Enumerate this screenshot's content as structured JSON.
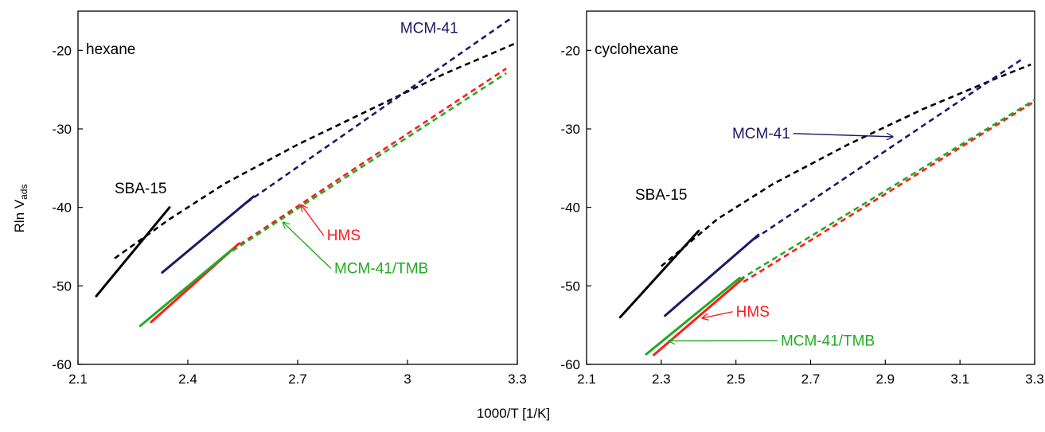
{
  "figure": {
    "ylabel_main": "Rln V",
    "ylabel_sub": "ads",
    "xlabel": "1000/T [1/K]"
  },
  "colors": {
    "SBA-15": "#000000",
    "MCM-41": "#1a1a66",
    "HMS": "#ff1a1a",
    "MCM-41/TMB": "#22aa22"
  },
  "chart_data": [
    {
      "type": "line",
      "panel_label": "hexane",
      "xlim": [
        2.1,
        3.3
      ],
      "ylim": [
        -60,
        -15
      ],
      "xticks": [
        "2.1",
        "2.4",
        "2.7",
        "3",
        "3.3"
      ],
      "yticks": [
        "-20",
        "-30",
        "-40",
        "-50",
        "-60"
      ],
      "ytick_values": [
        -20,
        -30,
        -40,
        -50,
        -60
      ],
      "xtick_values": [
        2.1,
        2.4,
        2.7,
        3.0,
        3.3
      ],
      "grid": false,
      "series": [
        {
          "name": "SBA-15",
          "style": "solid",
          "points": [
            [
              2.15,
              -51.3
            ],
            [
              2.35,
              -40.0
            ]
          ]
        },
        {
          "name": "SBA-15",
          "style": "dashed",
          "points": [
            [
              2.2,
              -46.5
            ],
            [
              2.35,
              -41.5
            ],
            [
              2.5,
              -37.0
            ],
            [
              2.7,
              -32.0
            ],
            [
              2.9,
              -27.5
            ],
            [
              3.1,
              -23.0
            ],
            [
              3.3,
              -19.0
            ]
          ]
        },
        {
          "name": "MCM-41",
          "style": "solid",
          "points": [
            [
              2.33,
              -48.3
            ],
            [
              2.58,
              -38.6
            ]
          ]
        },
        {
          "name": "MCM-41",
          "style": "dashed",
          "points": [
            [
              2.56,
              -39.4
            ],
            [
              3.28,
              -16.0
            ]
          ]
        },
        {
          "name": "HMS",
          "style": "solid",
          "points": [
            [
              2.3,
              -54.6
            ],
            [
              2.54,
              -44.6
            ]
          ]
        },
        {
          "name": "HMS",
          "style": "dashed",
          "points": [
            [
              2.52,
              -45.4
            ],
            [
              3.27,
              -22.3
            ]
          ]
        },
        {
          "name": "MCM-41/TMB",
          "style": "solid",
          "points": [
            [
              2.27,
              -55.1
            ],
            [
              2.52,
              -45.4
            ]
          ]
        },
        {
          "name": "MCM-41/TMB",
          "style": "dashed",
          "points": [
            [
              2.5,
              -46.2
            ],
            [
              3.27,
              -22.9
            ]
          ]
        }
      ],
      "annotations": [
        {
          "text": "SBA-15",
          "color": "SBA-15",
          "at": [
            2.2,
            -38.2
          ],
          "arrow": false
        },
        {
          "text": "MCM-41",
          "color": "MCM-41",
          "at": [
            2.98,
            -17.8
          ],
          "arrow": false
        },
        {
          "text": "HMS",
          "color": "HMS",
          "at": [
            2.78,
            -44.2
          ],
          "arrow": true,
          "arrow_to": [
            2.71,
            -39.7
          ]
        },
        {
          "text": "MCM-41/TMB",
          "color": "MCM-41/TMB",
          "at": [
            2.8,
            -48.4
          ],
          "arrow": true,
          "arrow_to": [
            2.66,
            -41.9
          ]
        }
      ]
    },
    {
      "type": "line",
      "panel_label": "cyclohexane",
      "xlim": [
        2.1,
        3.3
      ],
      "ylim": [
        -60,
        -15
      ],
      "xticks": [
        "2.1",
        "2.3",
        "2.5",
        "2.7",
        "2.9",
        "3.1",
        "3.3"
      ],
      "yticks": [
        "-20",
        "-30",
        "-40",
        "-50",
        "-60"
      ],
      "ytick_values": [
        -20,
        -30,
        -40,
        -50,
        -60
      ],
      "xtick_values": [
        2.1,
        2.3,
        2.5,
        2.7,
        2.9,
        3.1,
        3.3
      ],
      "grid": false,
      "series": [
        {
          "name": "SBA-15",
          "style": "solid",
          "points": [
            [
              2.19,
              -54.0
            ],
            [
              2.4,
              -43.0
            ]
          ]
        },
        {
          "name": "SBA-15",
          "style": "dashed",
          "points": [
            [
              2.3,
              -47.5
            ],
            [
              2.45,
              -41.5
            ],
            [
              2.6,
              -37.0
            ],
            [
              2.8,
              -32.0
            ],
            [
              3.0,
              -27.5
            ],
            [
              3.2,
              -23.5
            ],
            [
              3.29,
              -21.8
            ]
          ]
        },
        {
          "name": "MCM-41",
          "style": "solid",
          "points": [
            [
              2.31,
              -53.8
            ],
            [
              2.56,
              -43.5
            ]
          ]
        },
        {
          "name": "MCM-41",
          "style": "dashed",
          "points": [
            [
              2.55,
              -44.0
            ],
            [
              3.27,
              -21.0
            ]
          ]
        },
        {
          "name": "HMS",
          "style": "solid",
          "points": [
            [
              2.28,
              -58.8
            ],
            [
              2.52,
              -49.0
            ]
          ]
        },
        {
          "name": "HMS",
          "style": "dashed",
          "points": [
            [
              2.52,
              -49.5
            ],
            [
              3.3,
              -26.5
            ]
          ]
        },
        {
          "name": "MCM-41/TMB",
          "style": "solid",
          "points": [
            [
              2.26,
              -58.7
            ],
            [
              2.51,
              -49.0
            ]
          ]
        },
        {
          "name": "MCM-41/TMB",
          "style": "dashed",
          "points": [
            [
              2.51,
              -49.2
            ],
            [
              3.3,
              -26.3
            ]
          ]
        }
      ],
      "annotations": [
        {
          "text": "SBA-15",
          "color": "SBA-15",
          "at": [
            2.23,
            -39.0
          ],
          "arrow": false
        },
        {
          "text": "MCM-41",
          "color": "MCM-41",
          "at": [
            2.49,
            -31.2
          ],
          "arrow": true,
          "arrow_to": [
            2.92,
            -31.0
          ]
        },
        {
          "text": "HMS",
          "color": "HMS",
          "at": [
            2.5,
            -53.9
          ],
          "arrow": true,
          "arrow_to": [
            2.41,
            -54.1
          ]
        },
        {
          "text": "MCM-41/TMB",
          "color": "MCM-41/TMB",
          "at": [
            2.62,
            -57.6
          ],
          "arrow": true,
          "arrow_to": [
            2.32,
            -57.0
          ]
        }
      ]
    }
  ]
}
